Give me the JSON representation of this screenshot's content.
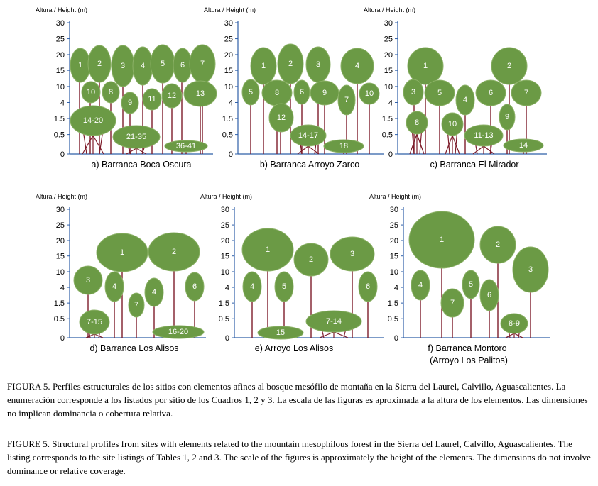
{
  "y_axis_label": "Altura / Height (m)",
  "y_ticks": [
    "30",
    "25",
    "20",
    "15",
    "10",
    "4",
    "1.5",
    "0.5",
    "0"
  ],
  "colors": {
    "crown": "#6b9a45",
    "crown_stroke": "#8bb166",
    "trunk": "#7d1c2a",
    "axis": "#2e5fa8"
  },
  "panels": [
    {
      "id": "a",
      "title": "a) Barranca Boca Oscura",
      "trees": [
        {
          "label": "1",
          "height": 15,
          "size": 1.2
        },
        {
          "label": "2",
          "height": 16,
          "size": 1.2
        },
        {
          "label": "3",
          "height": 15,
          "size": 1.2
        },
        {
          "label": "4",
          "height": 15,
          "size": 1.2
        },
        {
          "label": "5",
          "height": 16,
          "size": 1.2
        },
        {
          "label": "6",
          "height": 15,
          "size": 1.0
        },
        {
          "label": "7",
          "height": 16,
          "size": 1.2
        },
        {
          "label": "10",
          "height": 10,
          "size": 0.9
        },
        {
          "label": "8",
          "height": 10,
          "size": 0.9
        },
        {
          "label": "9",
          "height": 6,
          "size": 0.85
        },
        {
          "label": "11",
          "height": 6,
          "size": 0.9
        },
        {
          "label": "12",
          "height": 7,
          "size": 0.9
        },
        {
          "label": "13",
          "height": 8,
          "size": 1.2
        },
        {
          "label": "14-20",
          "height": 2,
          "size": 1.3
        },
        {
          "label": "21-35",
          "height": 0.7,
          "size": 1.3
        },
        {
          "label": "36-41",
          "height": 0.3,
          "size": 1.2
        }
      ]
    },
    {
      "id": "b",
      "title": "b) Barranca Arroyo Zarco",
      "trees": [
        {
          "label": "1",
          "height": 15,
          "size": 1.2
        },
        {
          "label": "2",
          "height": 16,
          "size": 1.2
        },
        {
          "label": "3",
          "height": 16,
          "size": 1.2
        },
        {
          "label": "4",
          "height": 15,
          "size": 1.2
        },
        {
          "label": "5",
          "height": 9,
          "size": 0.85
        },
        {
          "label": "8",
          "height": 9,
          "size": 1.1
        },
        {
          "label": "6",
          "height": 9,
          "size": 0.85
        },
        {
          "label": "9",
          "height": 9,
          "size": 1.1
        },
        {
          "label": "7",
          "height": 7,
          "size": 0.85
        },
        {
          "label": "10",
          "height": 9,
          "size": 0.9
        },
        {
          "label": "12",
          "height": 2.5,
          "size": 0.9
        },
        {
          "label": "14-17",
          "height": 0.8,
          "size": 1.2
        },
        {
          "label": "18",
          "height": 0.3,
          "size": 1.2
        }
      ]
    },
    {
      "id": "c",
      "title": "c) Barranca El Mirador",
      "trees": [
        {
          "label": "1",
          "height": 15,
          "size": 1.2
        },
        {
          "label": "2",
          "height": 15,
          "size": 1.2
        },
        {
          "label": "3",
          "height": 9,
          "size": 0.85
        },
        {
          "label": "5",
          "height": 9,
          "size": 1.1
        },
        {
          "label": "4",
          "height": 6,
          "size": 0.85
        },
        {
          "label": "6",
          "height": 9,
          "size": 1.1
        },
        {
          "label": "7",
          "height": 9,
          "size": 1.1
        },
        {
          "label": "8",
          "height": 1.5,
          "size": 0.9
        },
        {
          "label": "10",
          "height": 1.5,
          "size": 0.9
        },
        {
          "label": "11-13",
          "height": 0.8,
          "size": 1.2
        },
        {
          "label": "9",
          "height": 2.5,
          "size": 0.6
        },
        {
          "label": "14",
          "height": 0.3,
          "size": 1.2
        }
      ]
    },
    {
      "id": "d",
      "title": "d) Barranca Los Alisos",
      "trees": [
        {
          "label": "1",
          "height": 16,
          "size": 1.5
        },
        {
          "label": "2",
          "height": 16,
          "size": 1.5
        },
        {
          "label": "3",
          "height": 7,
          "size": 1.0
        },
        {
          "label": "4",
          "height": 5,
          "size": 0.8
        },
        {
          "label": "7",
          "height": 2.5,
          "size": 0.7
        },
        {
          "label": "4",
          "height": 5,
          "size": 0.7
        },
        {
          "label": "6",
          "height": 5,
          "size": 0.8
        },
        {
          "label": "7-15",
          "height": 1.2,
          "size": 1.2
        },
        {
          "label": "16-20",
          "height": 0.3,
          "size": 1.2
        }
      ]
    },
    {
      "id": "e",
      "title": "e) Arroyo Los Alisos",
      "trees": [
        {
          "label": "1",
          "height": 17,
          "size": 1.5
        },
        {
          "label": "2",
          "height": 14,
          "size": 1.1
        },
        {
          "label": "3",
          "height": 15,
          "size": 1.3
        },
        {
          "label": "4",
          "height": 5,
          "size": 0.8
        },
        {
          "label": "5",
          "height": 5,
          "size": 0.8
        },
        {
          "label": "6",
          "height": 5,
          "size": 0.8
        },
        {
          "label": "7-14",
          "height": 1.2,
          "size": 1.3
        },
        {
          "label": "15",
          "height": 0.3,
          "size": 1.1
        }
      ]
    },
    {
      "id": "f",
      "title": "f)  Barranca Montoro",
      "subtitle": "(Arroyo Los Palitos)",
      "trees": [
        {
          "label": "1",
          "height": 20,
          "size": 1.9
        },
        {
          "label": "2",
          "height": 16,
          "size": 1.2
        },
        {
          "label": "3",
          "height": 9,
          "size": 1.2
        },
        {
          "label": "4",
          "height": 5,
          "size": 0.75
        },
        {
          "label": "7",
          "height": 2.5,
          "size": 0.9
        },
        {
          "label": "5",
          "height": 5,
          "size": 0.75
        },
        {
          "label": "6",
          "height": 4,
          "size": 0.75
        },
        {
          "label": "8-9",
          "height": 1.2,
          "size": 1.0
        }
      ]
    }
  ],
  "caption_es": {
    "lead": "FIGURA 5.",
    "text": "Perfiles estructurales de los sitios con elementos afines al bosque mesófilo de montaña en la Sierra del Laurel, Calvillo, Aguascalientes. La enumeración corresponde a los listados por sitio de los Cuadros 1, 2 y 3. La escala de las figuras es aproximada a la altura de los elementos. Las dimensiones no implican dominancia o cobertura relativa."
  },
  "caption_en": {
    "lead": "FIGURE 5.",
    "text": "Structural profiles from sites with elements related to the mountain mesophilous forest in the Sierra del Laurel, Calvillo, Aguascalientes. The listing corresponds to the site listings of Tables 1, 2 and 3. The scale of the figures is approximately the height of the elements. The dimensions do not involve dominance or relative coverage."
  }
}
